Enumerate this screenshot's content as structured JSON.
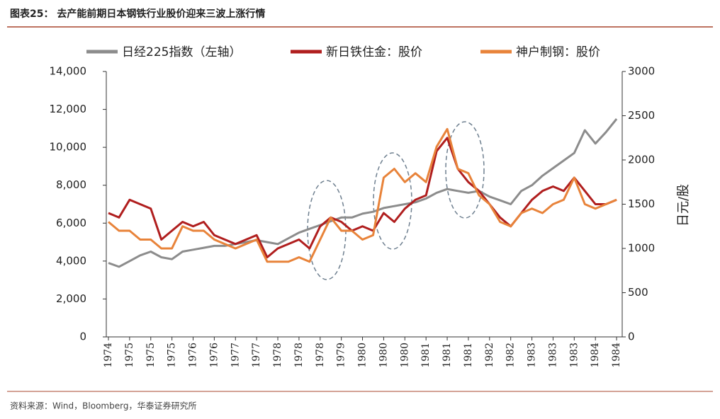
{
  "chart_data": {
    "type": "line",
    "title": "图表25：  去产能前期日本钢铁行业股价迎来三波上涨行情",
    "source": "资料来源：Wind，Bloomberg，华泰证券研究所",
    "y2_label": "日元/股",
    "categories": [
      "1974",
      null,
      "1975",
      null,
      "1975",
      null,
      "1975",
      null,
      "1976",
      null,
      "1976",
      null,
      "1977",
      null,
      "1977",
      null,
      "1978",
      null,
      "1978",
      null,
      "1978",
      null,
      "1979",
      null,
      "1980",
      null,
      "1980",
      null,
      "1980",
      null,
      "1981",
      null,
      "1981",
      null,
      "1981",
      null,
      "1982",
      null,
      "1982",
      null,
      "1983",
      null,
      "1983",
      null,
      "1983",
      null,
      "1984",
      null,
      "1984"
    ],
    "ylim": [
      0,
      14000
    ],
    "yticks": [
      0,
      {
        "value": 2000,
        "label": "2,000"
      },
      {
        "value": 4000,
        "label": "4,000"
      },
      {
        "value": 6000,
        "label": "6,000"
      },
      {
        "value": 8000,
        "label": "8,000"
      },
      {
        "value": 10000,
        "label": "10,000"
      },
      {
        "value": 12000,
        "label": "12,000"
      },
      {
        "value": 14000,
        "label": "14,000"
      }
    ],
    "y2lim": [
      0,
      3000
    ],
    "y2ticks": [
      0,
      500,
      1000,
      1500,
      2000,
      2500,
      3000
    ],
    "series": [
      {
        "name": "日经225指数（左轴）",
        "color": "#8c8c8c",
        "axis": "y",
        "values": [
          3900,
          3700,
          4000,
          4300,
          4500,
          4200,
          4100,
          4500,
          4600,
          4700,
          4800,
          4800,
          4900,
          5000,
          5100,
          5000,
          4900,
          5200,
          5500,
          5700,
          5900,
          6100,
          6300,
          6300,
          6500,
          6600,
          6800,
          6900,
          7000,
          7100,
          7300,
          7600,
          7800,
          7700,
          7600,
          7700,
          7400,
          7200,
          7000,
          7700,
          8000,
          8500,
          8900,
          9300,
          9700,
          10900,
          10200,
          10800,
          11500
        ]
      },
      {
        "name": "新日铁住金：股价",
        "color": "#b01e1e",
        "axis": "y2",
        "values": [
          1400,
          1350,
          1550,
          1500,
          1450,
          1100,
          1200,
          1300,
          1250,
          1300,
          1150,
          1100,
          1050,
          1100,
          1150,
          900,
          1000,
          1050,
          1100,
          1000,
          1250,
          1350,
          1300,
          1200,
          1250,
          1200,
          1400,
          1300,
          1450,
          1550,
          1600,
          2100,
          2250,
          1900,
          1750,
          1650,
          1500,
          1350,
          1250,
          1400,
          1550,
          1650,
          1700,
          1650,
          1800,
          1650,
          1500,
          1500,
          1550
        ]
      },
      {
        "name": "神户制钢：股价",
        "color": "#e8833a",
        "axis": "y2",
        "values": [
          1300,
          1200,
          1200,
          1100,
          1100,
          1000,
          1000,
          1250,
          1200,
          1200,
          1100,
          1050,
          1000,
          1050,
          1100,
          850,
          850,
          850,
          900,
          850,
          1100,
          1350,
          1200,
          1200,
          1100,
          1150,
          1800,
          1900,
          1750,
          1850,
          1750,
          2150,
          2350,
          1900,
          1850,
          1600,
          1500,
          1300,
          1250,
          1400,
          1450,
          1400,
          1500,
          1550,
          1800,
          1500,
          1450,
          1500,
          1550
        ]
      }
    ]
  }
}
